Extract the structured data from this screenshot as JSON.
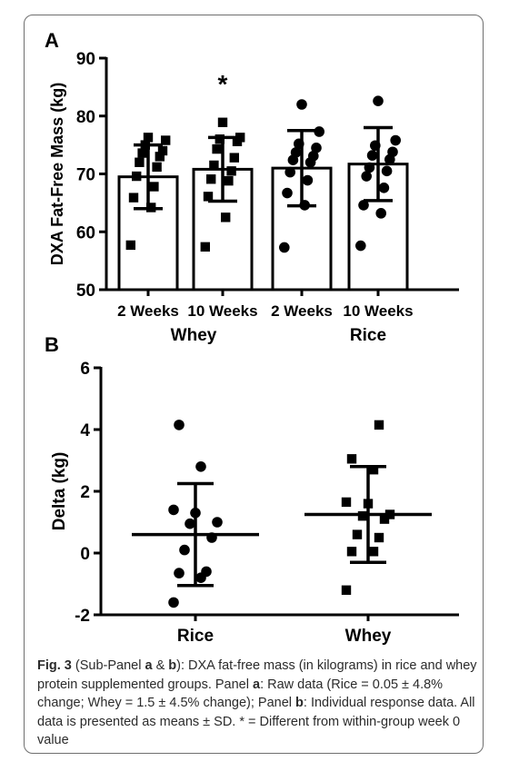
{
  "chart_data": [
    {
      "panel": "A",
      "type": "bar",
      "ylabel": "DXA  Fat-Free Mass (kg)",
      "ylim": [
        50,
        90
      ],
      "yticks": [
        50,
        60,
        70,
        80,
        90
      ],
      "categories": [
        "2 Weeks",
        "10 Weeks",
        "2 Weeks",
        "10 Weeks"
      ],
      "groups": [
        {
          "label": "Whey",
          "categories": [
            0,
            1
          ]
        },
        {
          "label": "Rice",
          "categories": [
            2,
            3
          ]
        }
      ],
      "values": [
        69.5,
        70.8,
        71.0,
        71.7
      ],
      "sd": [
        5.5,
        5.5,
        6.5,
        6.3
      ],
      "points": [
        [
          57.7,
          64.2,
          65.9,
          67.8,
          69.6,
          71.2,
          72.0,
          73.0,
          73.6,
          74.0,
          75.0,
          75.8,
          76.3
        ],
        [
          57.4,
          62.5,
          66.1,
          68.8,
          69.1,
          70.5,
          71.5,
          72.8,
          74.3,
          75.6,
          76.0,
          76.3,
          78.9
        ],
        [
          57.3,
          64.6,
          66.7,
          68.9,
          70.3,
          72.0,
          72.4,
          73.1,
          73.7,
          74.5,
          75.2,
          77.3,
          82.0
        ],
        [
          57.6,
          63.2,
          64.6,
          67.6,
          69.6,
          70.5,
          71.1,
          72.5,
          73.2,
          73.8,
          74.9,
          75.8,
          82.6
        ]
      ],
      "marker": [
        "square",
        "square",
        "circle",
        "circle"
      ],
      "annotations": [
        {
          "category": 1,
          "text": "*"
        }
      ]
    },
    {
      "panel": "B",
      "type": "scatter",
      "ylabel": "Delta (kg)",
      "ylim": [
        -2,
        6
      ],
      "yticks": [
        -2,
        0,
        2,
        4,
        6
      ],
      "categories": [
        "Rice",
        "Whey"
      ],
      "mean": [
        0.6,
        1.25
      ],
      "sd": [
        1.65,
        1.55
      ],
      "points": [
        [
          -1.6,
          -0.8,
          -0.65,
          -0.6,
          0.1,
          0.5,
          0.95,
          1.0,
          1.3,
          1.4,
          2.8,
          4.15
        ],
        [
          -1.2,
          0.05,
          0.05,
          0.5,
          0.6,
          1.1,
          1.2,
          1.25,
          1.6,
          1.65,
          2.7,
          3.05,
          4.15
        ]
      ],
      "marker": [
        "circle",
        "square"
      ]
    }
  ],
  "caption": {
    "label": "Fig. 3",
    "panel_a": "a",
    "panel_b": "b",
    "text1": " (Sub-Panel ",
    "text2": " & ",
    "text3": "): DXA fat-free mass (in kilograms) in rice and whey protein supplemented groups. Panel ",
    "text4": ": Raw data (Rice = 0.05 ± 4.8% change; Whey = 1.5 ± 4.5% change); Panel ",
    "text5": ": Individual response data. All data is presented as means ± SD. * = Different from within-group week 0 value"
  }
}
